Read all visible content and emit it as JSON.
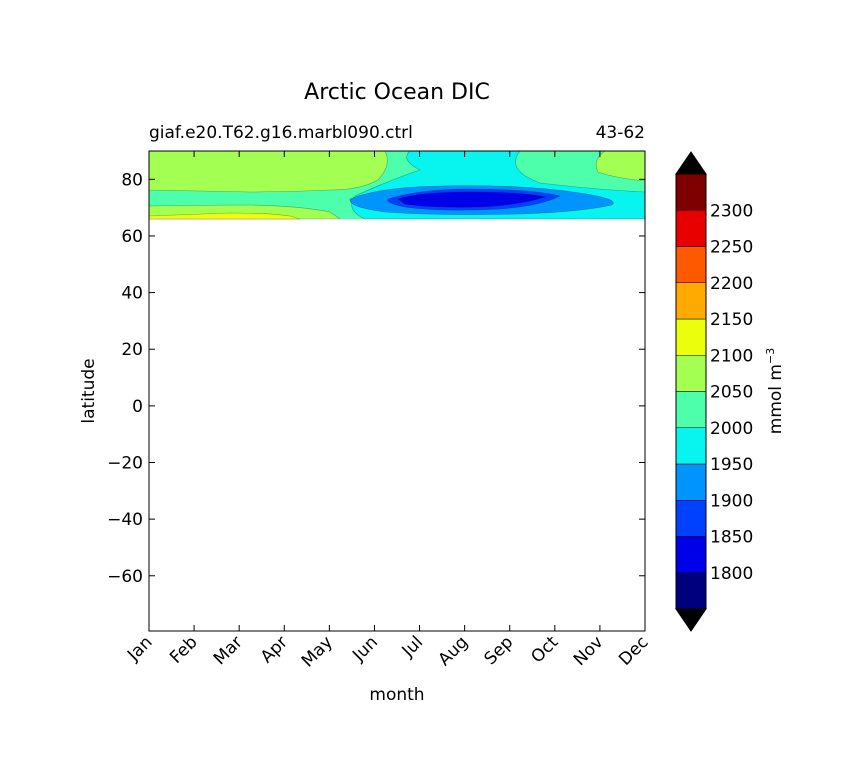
{
  "chart_data": {
    "type": "contour",
    "title": "Arctic Ocean DIC",
    "subtitle_left": "giaf.e20.T62.g16.marbl090.ctrl",
    "subtitle_right": "43-62",
    "xlabel": "month",
    "ylabel": "latitude",
    "x_ticks": [
      "Jan",
      "Feb",
      "Mar",
      "Apr",
      "May",
      "Jun",
      "Jul",
      "Aug",
      "Sep",
      "Oct",
      "Nov",
      "Dec"
    ],
    "xlim": [
      0,
      11
    ],
    "ylim": [
      -79.5,
      90
    ],
    "y_ticks": [
      -60,
      -40,
      -20,
      0,
      20,
      40,
      60,
      80
    ],
    "y_tick_labels": [
      "−60",
      "−40",
      "−20",
      "0",
      "20",
      "40",
      "60",
      "80"
    ],
    "data_lat_range": [
      66,
      90
    ],
    "colorbar": {
      "label": "mmol m",
      "label_sup": "−3",
      "levels": [
        1750,
        1800,
        1850,
        1900,
        1950,
        2000,
        2050,
        2100,
        2150,
        2200,
        2250,
        2300,
        2350
      ],
      "tick_labels": [
        "1800",
        "1850",
        "1900",
        "1950",
        "2000",
        "2050",
        "2100",
        "2150",
        "2200",
        "2250",
        "2300"
      ],
      "colors": [
        "#00007f",
        "#0000e8",
        "#0040ff",
        "#0094ff",
        "#08f4ee",
        "#4dffaa",
        "#a4ff53",
        "#ebff0c",
        "#ffaa00",
        "#ff5900",
        "#e80000",
        "#7f0000"
      ],
      "extend_low_color": "#000000",
      "extend_high_color": "#000000"
    },
    "regions": [
      {
        "band": "1900-1950",
        "latitude_span": [
          70,
          76
        ],
        "month_span": [
          5.2,
          9.6
        ]
      },
      {
        "band": "1850-1900",
        "latitude_span": [
          70.5,
          75
        ],
        "month_span": [
          5.5,
          8.9
        ]
      },
      {
        "band": "1950-2000",
        "latitude_span": [
          66,
          90
        ],
        "month_span": [
          4.5,
          10
        ]
      },
      {
        "band": "2050-2100",
        "latitude_span": [
          77,
          90
        ],
        "month_span": [
          0,
          5.2
        ]
      },
      {
        "band": "2100-2150",
        "latitude_span": [
          66,
          68
        ],
        "month_span": [
          0,
          3.3
        ]
      }
    ],
    "grid": false,
    "legend": "colorbar-right"
  }
}
